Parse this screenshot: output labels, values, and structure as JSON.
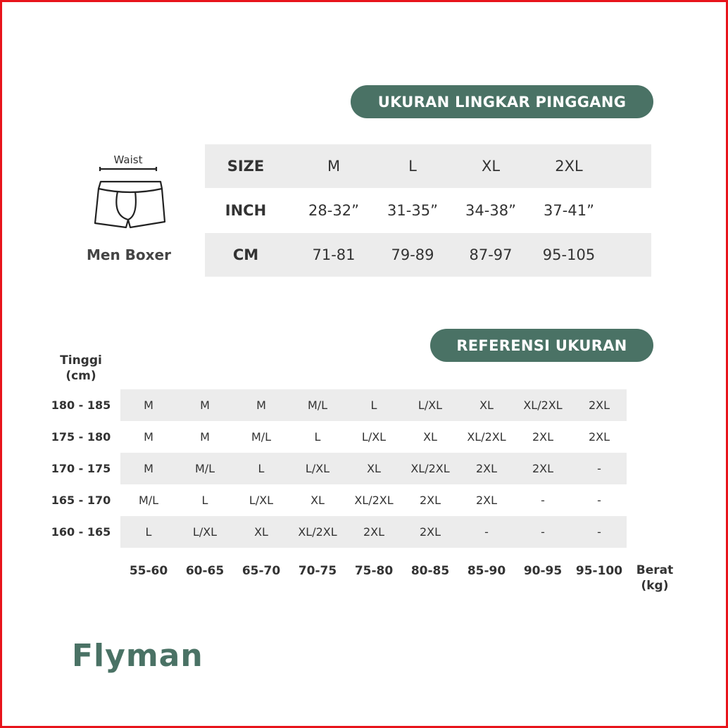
{
  "brand": {
    "logo_text": "Flyman",
    "accent_color": "#4a7265",
    "band_color": "#ececec"
  },
  "waist_section": {
    "title": "UKURAN LINGKAR PINGGANG",
    "illustration": {
      "measure_label": "Waist",
      "caption": "Men Boxer",
      "icon": "boxer-briefs-icon"
    },
    "rows": [
      {
        "label": "SIZE",
        "values": [
          "M",
          "L",
          "XL",
          "2XL"
        ]
      },
      {
        "label": "INCH",
        "values": [
          "28-32”",
          "31-35”",
          "34-38”",
          "37-41”"
        ]
      },
      {
        "label": "CM",
        "values": [
          "71-81",
          "79-89",
          "87-97",
          "95-105"
        ]
      }
    ]
  },
  "reference_section": {
    "title": "REFERENSI UKURAN",
    "height_axis_label": [
      "Tinggi",
      "(cm)"
    ],
    "weight_axis_label": [
      "Berat",
      "(kg)"
    ],
    "weights": [
      "55-60",
      "60-65",
      "65-70",
      "70-75",
      "75-80",
      "80-85",
      "85-90",
      "90-95",
      "95-100"
    ],
    "rows": [
      {
        "height": "180 - 185",
        "sizes": [
          "M",
          "M",
          "M",
          "M/L",
          "L",
          "L/XL",
          "XL",
          "XL/2XL",
          "2XL"
        ]
      },
      {
        "height": "175 - 180",
        "sizes": [
          "M",
          "M",
          "M/L",
          "L",
          "L/XL",
          "XL",
          "XL/2XL",
          "2XL",
          "2XL"
        ]
      },
      {
        "height": "170 - 175",
        "sizes": [
          "M",
          "M/L",
          "L",
          "L/XL",
          "XL",
          "XL/2XL",
          "2XL",
          "2XL",
          "-"
        ]
      },
      {
        "height": "165 - 170",
        "sizes": [
          "M/L",
          "L",
          "L/XL",
          "XL",
          "XL/2XL",
          "2XL",
          "2XL",
          "-",
          "-"
        ]
      },
      {
        "height": "160 - 165",
        "sizes": [
          "L",
          "L/XL",
          "XL",
          "XL/2XL",
          "2XL",
          "2XL",
          "-",
          "-",
          "-"
        ]
      }
    ]
  }
}
